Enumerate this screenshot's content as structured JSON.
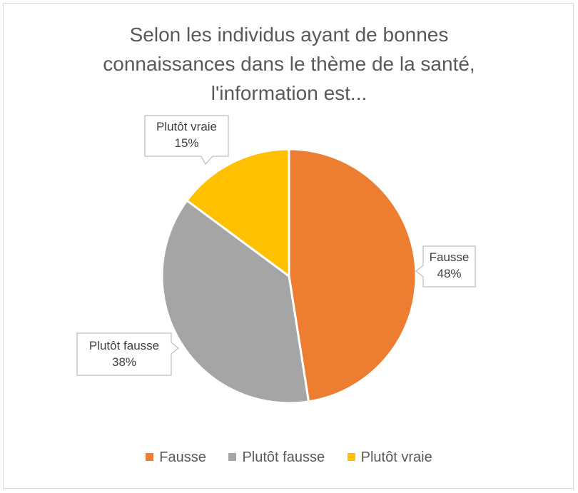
{
  "chart_data": {
    "type": "pie",
    "title_lines": [
      "Selon les individus ayant de bonnes",
      "connaissances dans le thème de la santé,",
      "l'information est..."
    ],
    "slices": [
      {
        "name": "Fausse",
        "value": 48,
        "label": "48%",
        "color": "#ED7D31"
      },
      {
        "name": "Plutôt fausse",
        "value": 38,
        "label": "38%",
        "color": "#A5A5A5"
      },
      {
        "name": "Plutôt vraie",
        "value": 15,
        "label": "15%",
        "color": "#FFC000"
      }
    ],
    "legend_position": "bottom"
  }
}
